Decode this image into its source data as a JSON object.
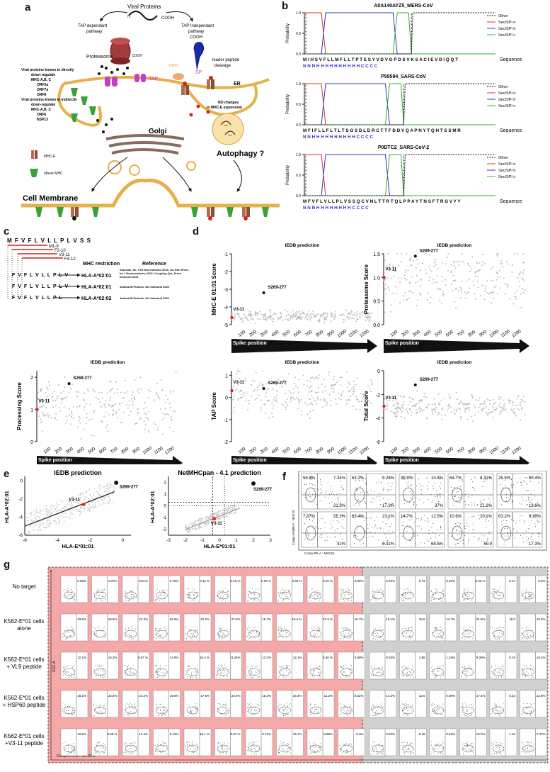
{
  "panels": {
    "a": "a",
    "b": "b",
    "c": "c",
    "d": "d",
    "e": "e",
    "f": "f",
    "g": "g"
  },
  "panel_a": {
    "viral_proteins": "Viral Proteins",
    "n_label": "N",
    "cooh": "COOH",
    "tap_dep": [
      "TAP dependant",
      "pathway"
    ],
    "tap_indep": [
      "TAP Independant",
      "pathway"
    ],
    "proteasome": "Proteasome",
    "spp": "SPP",
    "sp": "SP",
    "tap": "TAP",
    "leader": [
      "leader peptide",
      "cleavage"
    ],
    "er": "ER",
    "golgi": "Golgi",
    "autophagy": "Autophagy ?",
    "cell_membrane": "Cell Membrane",
    "no_changes": [
      "NO changes",
      "in MHC-E expression"
    ],
    "direct_list": [
      "Viral proteins known to directly",
      "down-regulate",
      "MHC-A,B, C",
      "ORF3a",
      "ORF7a",
      "ORF8",
      "Viral proteins known to indirectly",
      "down-regulate",
      "MHC-A,B, C",
      "ORF6",
      "NSP13"
    ],
    "legend_mhce": "MHC-E",
    "legend_others": "others MHC",
    "lys_labels": [
      "LYS",
      "LYS"
    ]
  },
  "panel_b": {
    "plots": [
      {
        "title": "A0A140AYZ5_MERS-CoV",
        "seq": "M I H S V F L L M F L L T P T E S Y V D V G P D S V K S A C I E V D I Q Q T",
        "anno": "N N N H H H H H H H H H H C C C C",
        "cleave": 0.56
      },
      {
        "title": "P59594_SARS-CoV",
        "seq": "M F I F L L F L T L T S G S D L D R C T T F D D V Q A P N Y T Q H T S S M R",
        "anno": "N N H H H H H H H H H H C C C C",
        "cleave": 0.52
      },
      {
        "title": "P0DTC2_SARS-CoV-2",
        "seq": "M F V F L V L L P L V S S Q C V N L T T R T Q L P P A Y T N S F T R G V Y Y",
        "anno": "N N N H H H H H H H H C C C C",
        "cleave": 0.52
      }
    ],
    "ylabel": "Probability",
    "yticks": [
      "1.0",
      "0.5",
      "0.0"
    ],
    "seq_label": "Sequence",
    "legend": [
      "Other",
      "Sec/SPI n",
      "Sec/SPI h",
      "Sec/SPI c"
    ],
    "colors": {
      "other": "#000000",
      "n": "#e03030",
      "h": "#3030c8",
      "c": "#30b030"
    }
  },
  "panel_c": {
    "sequence": "M F V F L V L L P L V S S",
    "frag_labels": [
      "M1-9",
      "F2-10",
      "V3-11",
      "F4-12"
    ],
    "mhc_header": "MHC restriction",
    "ref_header": "Reference",
    "rows": [
      {
        "peptide": "F V F L V L L P L V",
        "mhc": "HLA-A*02:01",
        "ref": "Xiaoxiao Jin; Cell Mol Immunol 2021; An-Ran Shen; Int J Nanomedicine 2022; Congling Qiu; Front Immunol 2021"
      },
      {
        "peptide": "F V F L V L L P L V",
        "mhc": "HLA-A*02:01",
        "ref": "Joshua M Francis; Sci Immunol 2022"
      },
      {
        "peptide": "F V F L V L L P L",
        "mhc": "HLA-A*02:02",
        "ref": "Joshua M Francis; Sci Immunol 2022"
      }
    ]
  },
  "panel_d": {
    "title": "IEDB prediction",
    "xlabel": "Spike position",
    "xticks": [
      "100",
      "200",
      "300",
      "400",
      "500",
      "600",
      "700",
      "800",
      "900",
      "1000",
      "1100",
      "1200"
    ],
    "v_label": "V3-11",
    "s_label": "S269-277",
    "plots": [
      {
        "ylabel": "MHC-E 01:01 Score",
        "yticks": [
          "-1",
          "-2",
          "-3",
          "-4",
          "-5"
        ]
      },
      {
        "ylabel": "Proteasome Score",
        "yticks": [
          "1.5",
          "1.0",
          "0.5",
          "0.0"
        ]
      },
      {
        "ylabel": "Processing Score",
        "yticks": [
          "2",
          "1",
          "0"
        ]
      },
      {
        "ylabel": "TAP Score",
        "yticks": [
          "1",
          "0",
          "-1",
          "-2"
        ]
      },
      {
        "ylabel": "Total Score",
        "yticks": [
          "0",
          "-2",
          "-4",
          "-6"
        ]
      }
    ]
  },
  "panel_e": {
    "left": {
      "title": "IEDB prediction",
      "xlabel": "HLA-E*01:01",
      "ylabel": "HLA-A*02:01",
      "xticks": [
        "-6",
        "-4",
        "-2",
        "0"
      ],
      "yticks": [
        "0",
        "-2",
        "-4",
        "-6"
      ]
    },
    "right": {
      "title": "NetMHCpan - 4.1 prediction",
      "xlabel": "HLA-E*01:01",
      "ylabel": "HLA-A*02:01",
      "xticks": [
        "-3",
        "-2",
        "-1",
        "0",
        "1",
        "2",
        "3"
      ],
      "yticks": [
        "2",
        "1",
        "0",
        "-1",
        "-2"
      ]
    },
    "v_label": "V3-11",
    "s_label": "S269-277"
  },
  "panel_f": {
    "ylabel": "Comp-AF488-A : NKG2C",
    "xlabel": "Comp-PE-A : NKG2a",
    "cells": [
      [
        "58.9%",
        "7.34%",
        "",
        "21.3%"
      ],
      [
        "63.2%",
        "9.28%",
        "",
        "17.3%"
      ],
      [
        "39.9%",
        "10.8%",
        "",
        "37%"
      ],
      [
        "64.7%",
        "8.31%",
        "",
        "21.2%"
      ],
      [
        "25.5%",
        "50.4%",
        "",
        "13.6%"
      ],
      [
        "7.37%",
        "25.1%",
        "",
        "41%"
      ],
      [
        "63.4%",
        "23.1%",
        "",
        "6.31%"
      ],
      [
        "14.7%",
        "12.5%",
        "",
        "68.5%"
      ],
      [
        "10.6%",
        "20.1%",
        "",
        "50.9"
      ],
      [
        "63.2%",
        "9.28%",
        "",
        "17.3%"
      ]
    ]
  },
  "panel_g": {
    "rows": [
      {
        "label": [
          "No target"
        ],
        "red": [
          "0.66%",
          "1.07%",
          "0.61%",
          "0.78%",
          "0.11 %",
          "0.16 %",
          "0.94 %",
          "0.30 %",
          "0.10 %",
          "0.09%"
        ],
        "gray": [
          "0.34%",
          "0.73",
          "0.15%",
          "0.42 %",
          "0.14",
          "0.6%"
        ]
      },
      {
        "label": [
          "K562-E*01 cells",
          "alone"
        ],
        "red": [
          "23.6%",
          "26.5%",
          "21.3%",
          "25.0%",
          "22.2%",
          "27.0%",
          "16.7%",
          "16.4 %",
          "22.3 %",
          "16.7%"
        ],
        "gray": [
          "15.1%",
          "15.6",
          "14.7%",
          "21.5%",
          "18.0",
          "19.2%"
        ]
      },
      {
        "label": [
          "K562-E*01 cells",
          "+ VL9 peptide"
        ],
        "red": [
          "12.1%",
          "16.3%",
          "9.97 %",
          "14.8%",
          "10.4 %",
          "8.25%",
          "12.3%",
          "12.1%",
          "9.38 %",
          "9.69%"
        ],
        "gray": [
          "9.03%",
          "1.95",
          "1.16%",
          "9.09%",
          "0.15",
          "10.4%"
        ]
      },
      {
        "label": [
          "K562-E*01 cells",
          "+ HSP60 peptide"
        ],
        "red": [
          "16.1%",
          "22.6%",
          "24.2%",
          "19.0%",
          "17.6%",
          "22.6%",
          "15.3%",
          "16.4%",
          "11.2%",
          "8.52%"
        ],
        "gray": [
          "14.3%",
          "12.5",
          "0.98%",
          "17.4%",
          "0.33",
          "12.8%"
        ]
      },
      {
        "label": [
          "K562-E*01 cells",
          "+V3-11 peptide"
        ],
        "red": [
          "12.6%",
          "9.68 %",
          "12.4%",
          "9.12%",
          "15.1 %",
          "8.67 %",
          "9.71%",
          "15.7%",
          "8.96%",
          "0.3%"
        ],
        "gray": [
          "0.53%",
          "9.49",
          "0.45%",
          "15.0%",
          "1.04",
          "7.37%"
        ]
      }
    ],
    "ylabel": "SSC-A",
    "xlabel": "Comp-A700-A : CD107a",
    "colors": {
      "red": "#f4a8a8",
      "gray": "#d0d0d0"
    }
  }
}
